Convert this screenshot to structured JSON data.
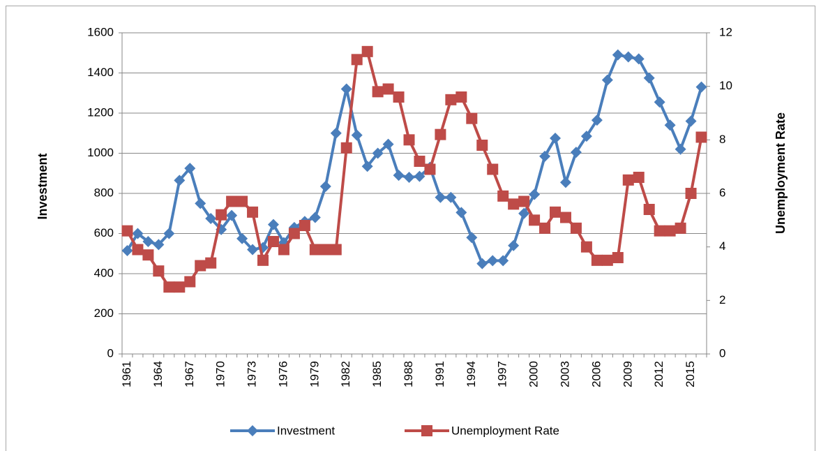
{
  "chart_data": {
    "type": "line",
    "categories": [
      "1961",
      null,
      null,
      "1964",
      null,
      null,
      "1967",
      null,
      null,
      "1970",
      null,
      null,
      "1973",
      null,
      null,
      "1976",
      null,
      null,
      "1979",
      null,
      null,
      "1982",
      null,
      null,
      "1985",
      null,
      null,
      "1988",
      null,
      null,
      "1991",
      null,
      null,
      "1994",
      null,
      null,
      "1997",
      null,
      null,
      "2000",
      null,
      null,
      "2003",
      null,
      null,
      "2006",
      null,
      null,
      "2009",
      null,
      null,
      "2012",
      null,
      null,
      "2015",
      null
    ],
    "y_label": "Investment",
    "y2_label": "Unemployment Rate",
    "ylim": [
      0,
      1600
    ],
    "yticks": [
      0,
      200,
      400,
      600,
      800,
      1000,
      1200,
      1400,
      1600
    ],
    "y2lim": [
      0,
      12
    ],
    "y2ticks": [
      0,
      2,
      4,
      6,
      8,
      10,
      12
    ],
    "grid": true,
    "legend": "bottom",
    "series": [
      {
        "name": "Investment",
        "color": "#4a7ebb",
        "marker": "diamond",
        "values": [
          515,
          600,
          560,
          545,
          600,
          865,
          925,
          750,
          675,
          620,
          690,
          575,
          520,
          530,
          645,
          555,
          630,
          660,
          680,
          835,
          1100,
          1320,
          1090,
          935,
          1000,
          1045,
          890,
          880,
          885,
          930,
          780,
          780,
          705,
          580,
          450,
          465,
          465,
          540,
          700,
          795,
          985,
          1075,
          855,
          1005,
          1085,
          1165,
          1365,
          1490,
          1480,
          1470,
          1375,
          1255,
          1140,
          1020,
          1160,
          1330
        ]
      },
      {
        "name": "Unemployment Rate",
        "color": "#be4b48",
        "marker": "square",
        "axis": "y2",
        "values": [
          4.6,
          3.9,
          3.7,
          3.1,
          2.5,
          2.5,
          2.7,
          3.3,
          3.4,
          5.2,
          5.7,
          5.7,
          5.3,
          3.5,
          4.2,
          3.9,
          4.5,
          4.8,
          3.9,
          3.9,
          3.9,
          7.7,
          11.0,
          11.3,
          9.8,
          9.9,
          9.6,
          8.0,
          7.2,
          6.9,
          8.2,
          9.5,
          9.6,
          8.8,
          7.8,
          6.9,
          5.9,
          5.6,
          5.7,
          5.0,
          4.7,
          5.3,
          5.1,
          4.7,
          4.0,
          3.5,
          3.5,
          3.6,
          6.5,
          6.6,
          5.4,
          4.6,
          4.6,
          4.7,
          6.0,
          8.1
        ]
      }
    ]
  }
}
